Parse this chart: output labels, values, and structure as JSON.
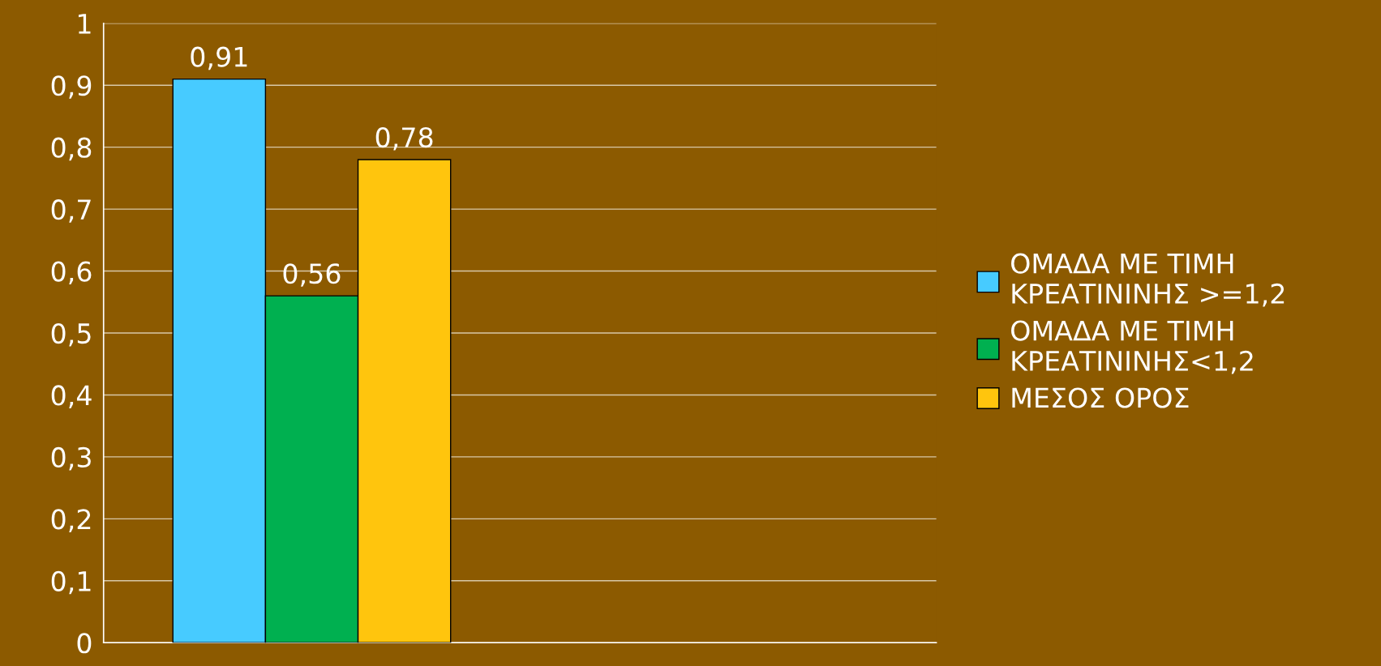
{
  "chart_data": {
    "type": "bar",
    "categories": [
      null,
      null
    ],
    "series": [
      {
        "name": "ΟΜΑΔΑ ΜΕ ΤΙΜΗ\nΚΡΕΑΤΙΝΙΝΗΣ >=1,2",
        "color": "#47cbff",
        "values": [
          0.91,
          null
        ],
        "value_labels": [
          "0,91",
          null
        ]
      },
      {
        "name": "ΟΜΑΔΑ ΜΕ ΤΙΜΗ\nΚΡΕΑΤΙΝΙΝΗΣ<1,2",
        "color": "#00b050",
        "values": [
          0.56,
          null
        ],
        "value_labels": [
          "0,56",
          null
        ]
      },
      {
        "name": "ΜΕΣΟΣ ΟΡΟΣ",
        "color": "#ffc50d",
        "values": [
          0.78,
          null
        ],
        "value_labels": [
          "0,78",
          null
        ]
      }
    ],
    "ylim": [
      0,
      1
    ],
    "yticks": [
      0,
      {
        "value": 0.1,
        "label": "0,1"
      },
      {
        "value": 0.2,
        "label": "0,2"
      },
      {
        "value": 0.3,
        "label": "0,3"
      },
      {
        "value": 0.4,
        "label": "0,4"
      },
      {
        "value": 0.5,
        "label": "0,5"
      },
      {
        "value": 0.6,
        "label": "0,6"
      },
      {
        "value": 0.7,
        "label": "0,7"
      },
      {
        "value": 0.8,
        "label": "0,8"
      },
      {
        "value": 0.9,
        "label": "0,9"
      },
      1
    ],
    "grid": "y",
    "legend": "right"
  }
}
